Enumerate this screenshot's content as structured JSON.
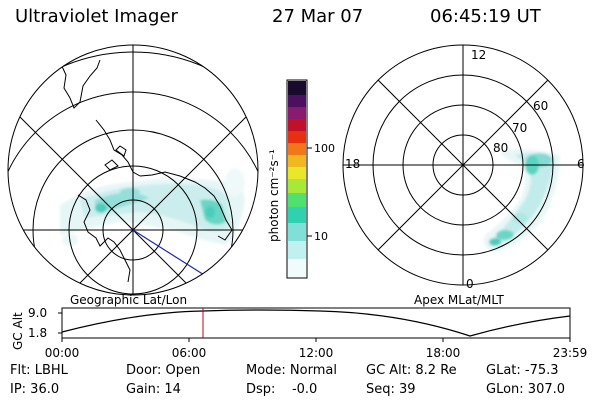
{
  "header": {
    "title": "Ultraviolet Imager",
    "date": "27 Mar 07",
    "time": "06:45:19 UT"
  },
  "colorbar": {
    "unit_label": "photon cm⁻²s⁻¹",
    "ticks": [
      "100",
      "10"
    ],
    "colors": [
      "#1a0a2e",
      "#4b1060",
      "#8a1a6e",
      "#c0102a",
      "#e83010",
      "#f07818",
      "#f0b820",
      "#e8e828",
      "#a8e838",
      "#50e070",
      "#30d0b0",
      "#80e0d8",
      "#c0f0f0",
      "#f2fbfb"
    ]
  },
  "geo_panel": {
    "label": "Geographic Lat/Lon"
  },
  "apex_panel": {
    "label": "Apex  MLat/MLT",
    "mlt_labels": {
      "top": "12",
      "left": "18",
      "right": "6",
      "bottom": "0"
    },
    "lat_labels": [
      "60",
      "70",
      "80"
    ]
  },
  "timeline": {
    "ylabel": "GC Alt",
    "yticks": [
      "9.0",
      "1.8"
    ],
    "xticks": [
      "00:00",
      "06:00",
      "12:00",
      "18:00",
      "23:59"
    ],
    "marker_time": "06:45"
  },
  "info": {
    "flt": "Flt: LBHL",
    "ip": "IP: 36.0",
    "door": "Door: Open",
    "gain": "Gain: 14",
    "mode": "Mode: Normal",
    "dsp": "Dsp:    -0.0",
    "gcalt": "GC Alt: 8.2 Re",
    "seq": "Seq: 39",
    "glat": "GLat: -75.3",
    "glon": "GLon: 307.0"
  }
}
